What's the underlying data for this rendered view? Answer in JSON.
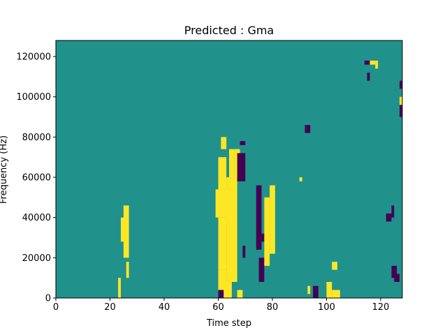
{
  "chart_data": {
    "type": "heatmap",
    "title": "Predicted : Gma",
    "xlabel": "Time step",
    "ylabel": "Frequency (Hz)",
    "xlim": [
      0,
      128
    ],
    "ylim": [
      0,
      128000
    ],
    "xticks": [
      0,
      20,
      40,
      60,
      80,
      100,
      120
    ],
    "yticks": [
      0,
      20000,
      40000,
      60000,
      80000,
      100000,
      120000
    ],
    "grid": false,
    "legend": "none",
    "colors": {
      "background": "#21918c",
      "high": "#fde725",
      "low": "#440154"
    },
    "value_levels": {
      "low": -1,
      "background": 0,
      "high": 1
    },
    "cells_note": "Each cell: [time_step_start, time_step_end, freq_start_hz, freq_end_hz, level]",
    "cells": [
      [
        60,
        63,
        0,
        14000,
        1
      ],
      [
        60,
        63,
        14000,
        40000,
        1
      ],
      [
        59,
        64,
        40000,
        54000,
        1
      ],
      [
        60,
        63,
        54000,
        70000,
        1
      ],
      [
        62,
        65,
        0,
        8000,
        1
      ],
      [
        63,
        67,
        8000,
        60000,
        1
      ],
      [
        64,
        66,
        60000,
        74000,
        1
      ],
      [
        61,
        63,
        74000,
        80000,
        1
      ],
      [
        66,
        68,
        60000,
        74000,
        1
      ],
      [
        67,
        69,
        0,
        4000,
        1
      ],
      [
        60,
        62,
        0,
        4000,
        -1
      ],
      [
        67,
        70,
        58000,
        72000,
        -1
      ],
      [
        69,
        70,
        20000,
        26000,
        -1
      ],
      [
        68,
        70,
        76000,
        78000,
        -1
      ],
      [
        74,
        76,
        24000,
        56000,
        -1
      ],
      [
        75,
        77,
        8000,
        20000,
        -1
      ],
      [
        76,
        78,
        28000,
        32000,
        -1
      ],
      [
        77,
        79,
        16000,
        50000,
        1
      ],
      [
        79,
        81,
        22000,
        56000,
        1
      ],
      [
        24,
        26,
        28000,
        40000,
        1
      ],
      [
        25,
        27,
        20000,
        46000,
        1
      ],
      [
        26,
        27,
        10000,
        18000,
        1
      ],
      [
        23,
        24,
        0,
        10000,
        1
      ],
      [
        90,
        91,
        58000,
        60000,
        1
      ],
      [
        93,
        94,
        2000,
        6000,
        1
      ],
      [
        95,
        97,
        0,
        6000,
        -1
      ],
      [
        100,
        102,
        0,
        8000,
        1
      ],
      [
        102,
        105,
        0,
        4000,
        1
      ],
      [
        102,
        104,
        14000,
        18000,
        1
      ],
      [
        92,
        94,
        82000,
        86000,
        -1
      ],
      [
        124,
        125,
        40000,
        46000,
        -1
      ],
      [
        122,
        124,
        38000,
        42000,
        -1
      ],
      [
        124,
        126,
        10000,
        16000,
        -1
      ],
      [
        125,
        127,
        8000,
        12000,
        -1
      ],
      [
        127,
        128,
        90000,
        96000,
        -1
      ],
      [
        127,
        128,
        104000,
        108000,
        -1
      ],
      [
        127,
        128,
        96000,
        100000,
        1
      ],
      [
        116,
        118,
        116000,
        118000,
        1
      ],
      [
        118,
        119,
        114000,
        118000,
        1
      ],
      [
        114,
        116,
        116000,
        118000,
        -1
      ],
      [
        115,
        116,
        108000,
        112000,
        -1
      ]
    ]
  }
}
